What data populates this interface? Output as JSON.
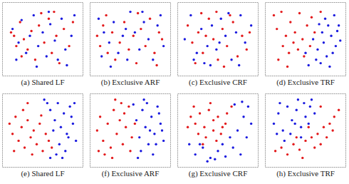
{
  "chart_data": [
    {
      "type": "scatter",
      "title": "(a) Shared LF",
      "tick_labels": false,
      "xlim": [
        0,
        100
      ],
      "ylim": [
        0,
        100
      ],
      "series": [
        {
          "color": "#e31a1c",
          "marker": "circle",
          "x": [
            8,
            12,
            15,
            20,
            25,
            30,
            35,
            40,
            45,
            52,
            58,
            62,
            68,
            72,
            78,
            85,
            90,
            22,
            48,
            65
          ],
          "values": [
            60,
            55,
            40,
            75,
            50,
            35,
            62,
            20,
            70,
            45,
            80,
            30,
            55,
            15,
            65,
            40,
            75,
            25,
            88,
            90
          ]
        },
        {
          "color": "#1a1adf",
          "marker": "circle",
          "x": [
            10,
            18,
            22,
            28,
            33,
            38,
            44,
            50,
            55,
            60,
            66,
            70,
            75,
            80,
            88,
            92,
            15,
            42,
            58,
            82
          ],
          "values": [
            65,
            45,
            78,
            30,
            55,
            85,
            40,
            60,
            25,
            72,
            48,
            20,
            80,
            35,
            55,
            85,
            20,
            10,
            90,
            12
          ]
        }
      ]
    },
    {
      "type": "scatter",
      "title": "(b) Exclusive ARF",
      "tick_labels": false,
      "xlim": [
        0,
        100
      ],
      "ylim": [
        0,
        100
      ],
      "series": [
        {
          "color": "#e31a1c",
          "marker": "circle",
          "x": [
            6,
            10,
            14,
            20,
            26,
            30,
            36,
            42,
            48,
            54,
            58,
            64,
            70,
            76,
            82,
            88,
            92,
            18,
            60,
            85
          ],
          "values": [
            55,
            40,
            70,
            30,
            60,
            20,
            45,
            75,
            35,
            55,
            15,
            65,
            40,
            80,
            30,
            60,
            50,
            85,
            88,
            12
          ]
        },
        {
          "color": "#1a1adf",
          "marker": "circle",
          "x": [
            8,
            15,
            22,
            28,
            34,
            40,
            46,
            50,
            56,
            62,
            68,
            74,
            80,
            86,
            94,
            24,
            44,
            66,
            90,
            12
          ],
          "values": [
            80,
            60,
            45,
            75,
            30,
            55,
            20,
            90,
            60,
            35,
            75,
            50,
            20,
            70,
            40,
            10,
            65,
            90,
            85,
            25
          ]
        }
      ]
    },
    {
      "type": "scatter",
      "title": "(c) Exclusive CRF",
      "tick_labels": false,
      "xlim": [
        0,
        100
      ],
      "ylim": [
        0,
        100
      ],
      "series": [
        {
          "color": "#e31a1c",
          "marker": "circle",
          "x": [
            10,
            16,
            24,
            30,
            38,
            44,
            50,
            56,
            62,
            70,
            76,
            82,
            88,
            20,
            34,
            48,
            66,
            92,
            28,
            58
          ],
          "values": [
            70,
            45,
            60,
            30,
            80,
            50,
            20,
            65,
            40,
            75,
            25,
            55,
            35,
            15,
            55,
            90,
            85,
            60,
            88,
            10
          ]
        },
        {
          "color": "#1a1adf",
          "marker": "circle",
          "x": [
            6,
            14,
            22,
            28,
            36,
            42,
            48,
            54,
            60,
            68,
            74,
            80,
            86,
            94,
            18,
            40,
            64,
            78,
            32,
            52
          ],
          "values": [
            50,
            85,
            30,
            65,
            40,
            70,
            35,
            80,
            55,
            20,
            60,
            85,
            45,
            70,
            20,
            12,
            88,
            12,
            15,
            45
          ]
        }
      ]
    },
    {
      "type": "scatter",
      "title": "(d) Exclusive TRF",
      "tick_labels": false,
      "xlim": [
        0,
        100
      ],
      "ylim": [
        0,
        100
      ],
      "series": [
        {
          "color": "#e31a1c",
          "marker": "circle",
          "x": [
            8,
            12,
            18,
            24,
            30,
            36,
            42,
            46,
            52,
            58,
            20,
            28,
            34,
            14,
            40,
            62,
            70,
            48,
            26,
            56
          ],
          "values": [
            85,
            65,
            90,
            55,
            75,
            60,
            88,
            50,
            70,
            82,
            40,
            30,
            45,
            20,
            35,
            60,
            90,
            25,
            10,
            40
          ]
        },
        {
          "color": "#1a1adf",
          "marker": "circle",
          "x": [
            60,
            66,
            72,
            78,
            84,
            90,
            94,
            70,
            76,
            82,
            88,
            64,
            74,
            86,
            92,
            54,
            80,
            68,
            50,
            96
          ],
          "values": [
            50,
            35,
            60,
            25,
            55,
            40,
            70,
            15,
            80,
            10,
            85,
            20,
            45,
            30,
            62,
            12,
            70,
            72,
            30,
            48
          ]
        }
      ]
    },
    {
      "type": "scatter",
      "title": "(e) Shared LF",
      "tick_labels": false,
      "xlim": [
        0,
        100
      ],
      "ylim": [
        0,
        100
      ],
      "series": [
        {
          "color": "#e31a1c",
          "marker": "circle",
          "x": [
            6,
            10,
            14,
            18,
            22,
            26,
            30,
            34,
            38,
            42,
            46,
            50,
            54,
            58,
            12,
            24,
            36,
            48,
            62,
            30
          ],
          "values": [
            60,
            45,
            70,
            35,
            55,
            25,
            65,
            40,
            50,
            30,
            60,
            20,
            45,
            35,
            20,
            80,
            15,
            72,
            25,
            90
          ]
        },
        {
          "color": "#1a1adf",
          "marker": "circle",
          "x": [
            60,
            66,
            70,
            74,
            78,
            82,
            86,
            90,
            94,
            64,
            72,
            80,
            88,
            56,
            76,
            84,
            68,
            92,
            52,
            60
          ],
          "values": [
            80,
            65,
            90,
            55,
            75,
            45,
            85,
            60,
            35,
            50,
            30,
            20,
            70,
            90,
            10,
            40,
            15,
            90,
            95,
            10
          ]
        }
      ]
    },
    {
      "type": "scatter",
      "title": "(f) Exclusive ARF",
      "tick_labels": false,
      "xlim": [
        0,
        100
      ],
      "ylim": [
        0,
        100
      ],
      "series": [
        {
          "color": "#e31a1c",
          "marker": "circle",
          "x": [
            6,
            10,
            14,
            20,
            24,
            28,
            32,
            36,
            40,
            44,
            48,
            52,
            16,
            26,
            38,
            50,
            56,
            30,
            42,
            8
          ],
          "values": [
            50,
            70,
            35,
            60,
            25,
            80,
            45,
            65,
            30,
            55,
            85,
            40,
            15,
            10,
            90,
            20,
            60,
            95,
            75,
            20
          ]
        },
        {
          "color": "#1a1adf",
          "marker": "circle",
          "x": [
            58,
            62,
            66,
            70,
            74,
            78,
            82,
            86,
            90,
            94,
            64,
            72,
            80,
            88,
            60,
            76,
            84,
            92,
            68,
            54
          ],
          "values": [
            65,
            40,
            80,
            55,
            30,
            70,
            45,
            85,
            60,
            35,
            20,
            90,
            15,
            75,
            10,
            50,
            30,
            50,
            95,
            88
          ]
        }
      ]
    },
    {
      "type": "scatter",
      "title": "(g) Exclusive CRF",
      "tick_labels": false,
      "xlim": [
        0,
        100
      ],
      "ylim": [
        0,
        100
      ],
      "series": [
        {
          "color": "#e31a1c",
          "marker": "circle",
          "x": [
            14,
            20,
            26,
            32,
            38,
            44,
            50,
            56,
            62,
            24,
            34,
            44,
            54,
            18,
            40,
            30,
            48,
            60,
            68,
            10
          ],
          "values": [
            70,
            60,
            75,
            55,
            80,
            65,
            70,
            55,
            75,
            45,
            40,
            50,
            45,
            85,
            90,
            30,
            35,
            60,
            85,
            55
          ]
        },
        {
          "color": "#1a1adf",
          "marker": "circle",
          "x": [
            20,
            30,
            40,
            50,
            60,
            70,
            80,
            88,
            94,
            76,
            84,
            90,
            66,
            56,
            46,
            36,
            26,
            12,
            72,
            82
          ],
          "values": [
            15,
            25,
            10,
            20,
            12,
            25,
            15,
            40,
            60,
            50,
            70,
            85,
            40,
            30,
            8,
            5,
            30,
            30,
            88,
            92
          ]
        }
      ]
    },
    {
      "type": "scatter",
      "title": "(h) Exclusive TRF",
      "tick_labels": false,
      "xlim": [
        0,
        100
      ],
      "ylim": [
        0,
        100
      ],
      "series": [
        {
          "color": "#e31a1c",
          "marker": "circle",
          "x": [
            10,
            18,
            26,
            34,
            42,
            50,
            58,
            66,
            74,
            82,
            88,
            94,
            62,
            70,
            78,
            86,
            54,
            46,
            38,
            70
          ],
          "values": [
            20,
            25,
            15,
            30,
            22,
            35,
            40,
            45,
            55,
            60,
            70,
            80,
            25,
            30,
            40,
            50,
            55,
            10,
            40,
            85
          ]
        },
        {
          "color": "#1a1adf",
          "marker": "circle",
          "x": [
            8,
            14,
            20,
            26,
            32,
            38,
            44,
            50,
            30,
            40,
            48,
            56,
            62,
            22,
            12,
            36,
            54,
            16,
            44,
            58
          ],
          "values": [
            60,
            75,
            50,
            85,
            65,
            80,
            55,
            70,
            45,
            95,
            90,
            85,
            75,
            35,
            45,
            60,
            60,
            90,
            40,
            95
          ]
        }
      ]
    }
  ]
}
